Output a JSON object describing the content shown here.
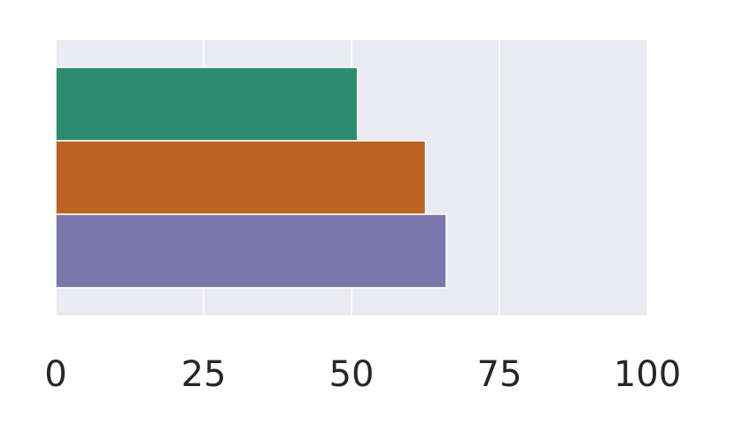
{
  "chart_data": {
    "type": "barh",
    "categories": [
      null,
      null,
      null
    ],
    "values": [
      51,
      62.5,
      66
    ],
    "colors": [
      "#2b8c6e",
      "#bd6220",
      "#7b76ab"
    ],
    "xlim": [
      0,
      100
    ],
    "xticks": [
      0,
      25,
      50,
      75,
      100
    ],
    "grid": true
  }
}
